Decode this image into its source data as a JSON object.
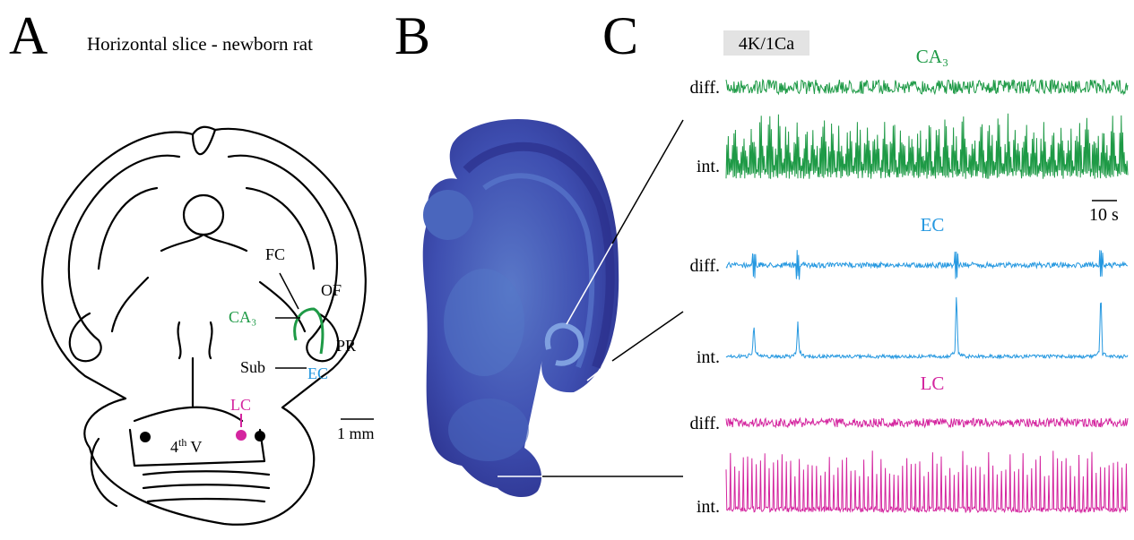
{
  "panel_a": {
    "label": "A",
    "title": "Horizontal slice - newborn rat",
    "annotations": {
      "fc": "FC",
      "of": "OF",
      "ca3": "CA₃",
      "pr": "PR",
      "sub": "Sub",
      "ec": "EC",
      "lc": "LC",
      "ventricle": {
        "number": "4",
        "superscript": "th",
        "text": "V"
      }
    },
    "scale_bar": "1 mm"
  },
  "panel_b": {
    "label": "B"
  },
  "panel_c": {
    "label": "C",
    "condition": "4K/1Ca",
    "scale_bar": "10 s",
    "recordings": [
      {
        "region": "CA₃",
        "color": "#1e9a46",
        "traces": [
          "diff.",
          "int."
        ]
      },
      {
        "region": "EC",
        "color": "#2598e0",
        "traces": [
          "diff.",
          "int."
        ]
      },
      {
        "region": "LC",
        "color": "#d4259f",
        "traces": [
          "diff.",
          "int."
        ]
      }
    ]
  }
}
